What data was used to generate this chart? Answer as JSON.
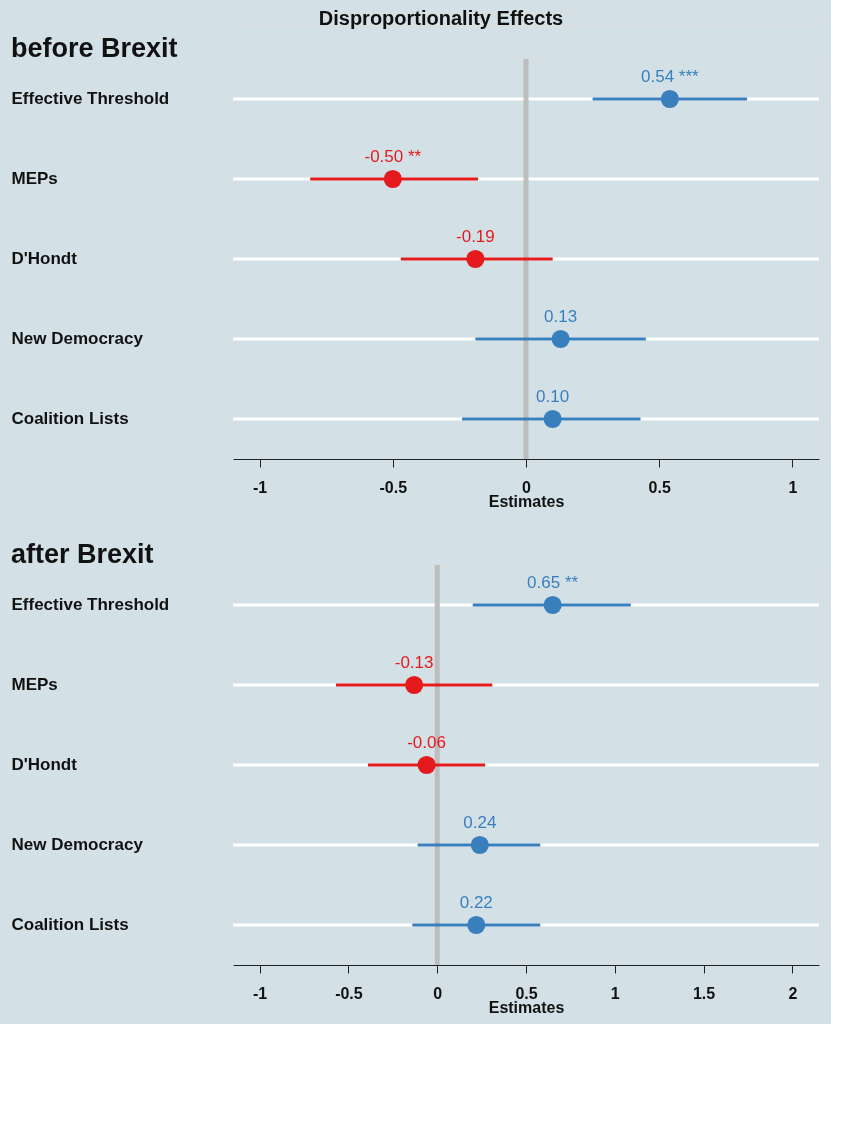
{
  "chart_data": [
    {
      "type": "scatter",
      "orientation": "horizontal",
      "title": "Disproportionality Effects",
      "subtitle": "before Brexit",
      "xlabel": "Estimates",
      "categories": [
        "Effective Threshold",
        "MEPs",
        "D'Hondt",
        "New Democracy",
        "Coalition Lists"
      ],
      "values": [
        0.54,
        -0.5,
        -0.19,
        0.13,
        0.1
      ],
      "colors": [
        "#3a7fbd",
        "#e41a1c",
        "#e41a1c",
        "#3a7fbd",
        "#3a7fbd"
      ],
      "errors": [
        [
          0.25,
          0.83
        ],
        [
          -0.81,
          -0.18
        ],
        [
          -0.47,
          0.1
        ],
        [
          -0.19,
          0.45
        ],
        [
          -0.24,
          0.43
        ]
      ],
      "value_labels": [
        "0.54 ***",
        "-0.50 **",
        "-0.19",
        "0.13",
        "0.10"
      ],
      "xlim": [
        -1.1,
        1.1
      ],
      "xticks": [
        -1,
        -0.5,
        0,
        0.5,
        1
      ],
      "ref_lines": [
        {
          "axis": "x",
          "value": 0,
          "color": "#bdbdbd"
        }
      ],
      "grid": "y",
      "marker": "circle"
    },
    {
      "type": "scatter",
      "orientation": "horizontal",
      "title": "after Brexit",
      "xlabel": "Estimates",
      "categories": [
        "Effective Threshold",
        "MEPs",
        "D'Hondt",
        "New Democracy",
        "Coalition Lists"
      ],
      "values": [
        0.65,
        -0.13,
        -0.06,
        0.24,
        0.22
      ],
      "colors": [
        "#3a7fbd",
        "#e41a1c",
        "#e41a1c",
        "#3a7fbd",
        "#3a7fbd"
      ],
      "errors": [
        [
          0.2,
          1.09
        ],
        [
          -0.57,
          0.31
        ],
        [
          -0.39,
          0.27
        ],
        [
          -0.11,
          0.58
        ],
        [
          -0.14,
          0.58
        ]
      ],
      "value_labels": [
        "0.65 **",
        "-0.13",
        "-0.06",
        "0.24",
        "0.22"
      ],
      "xlim": [
        -1.15,
        2.15
      ],
      "xticks": [
        -1,
        -0.5,
        0,
        0.5,
        1,
        1.5,
        2
      ],
      "ref_lines": [
        {
          "axis": "x",
          "value": 0,
          "color": "#bdbdbd"
        }
      ],
      "grid": "y",
      "marker": "circle"
    }
  ]
}
